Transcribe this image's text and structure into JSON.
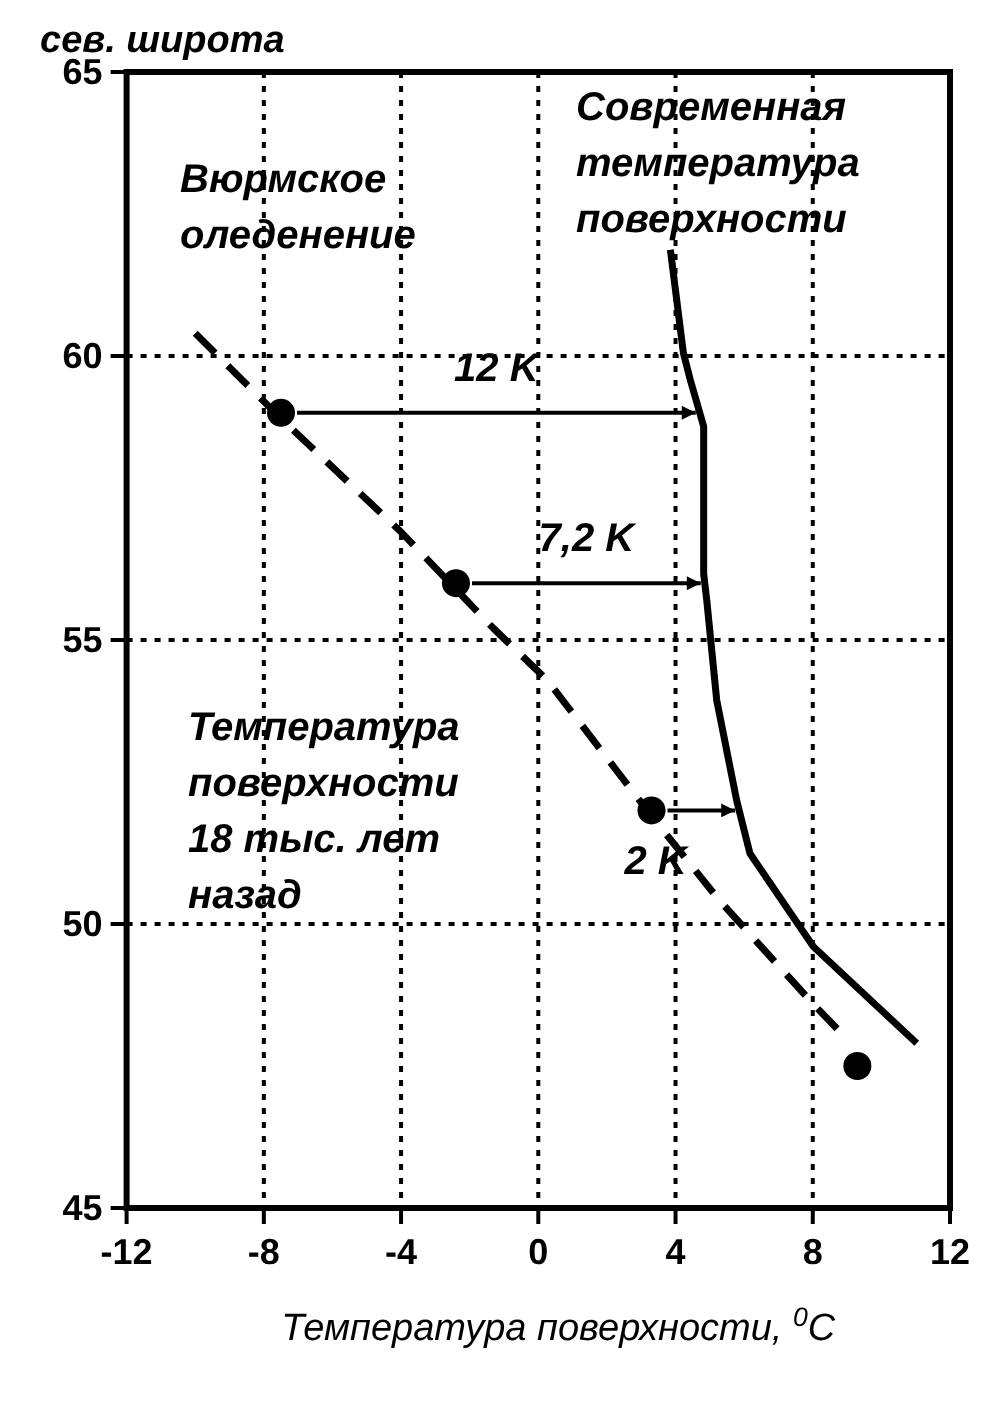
{
  "chart_data": {
    "type": "line",
    "xlabel": "Температура поверхности, $^{0}$C",
    "ylabel": "сев. широта",
    "xlim": [
      -12,
      12
    ],
    "xticks": [
      -12,
      -8,
      -4,
      0,
      4,
      8,
      12
    ],
    "ylim": [
      45,
      65
    ],
    "yticks": [
      45,
      50,
      55,
      60,
      65
    ],
    "grid": true,
    "series": [
      {
        "name": "Современная температура поверхности",
        "line_style": "solid",
        "color": "#000000",
        "x": [
          3.85,
          4.23,
          4.43,
          4.82,
          4.82,
          4.91,
          5.2,
          5.78,
          6.17,
          8.02,
          11.03
        ],
        "values": [
          61.87,
          60.05,
          59.58,
          58.76,
          56.17,
          55.7,
          53.94,
          52.18,
          51.24,
          49.6,
          47.9
        ]
      },
      {
        "name": "Температура поверхности 18 тыс. лет назад",
        "line_style": "dashed",
        "color": "#000000",
        "x": [
          -10,
          -7.5,
          -4,
          -1.3,
          0.25,
          3.3,
          5.3,
          8,
          8.8
        ],
        "values": [
          60.4,
          58.9,
          56.9,
          55.2,
          54.3,
          51.9,
          50.4,
          48.6,
          48.1
        ]
      },
      {
        "type": "scatter",
        "marker": "circle",
        "color": "#000000",
        "x": [
          -7.5,
          -2.4,
          3.3,
          9.3
        ],
        "values": [
          59,
          56,
          52,
          47.5
        ]
      }
    ],
    "annotations": [
      "Вюрмское оледенение",
      "12 K",
      "7,2 K",
      "2 K"
    ]
  }
}
